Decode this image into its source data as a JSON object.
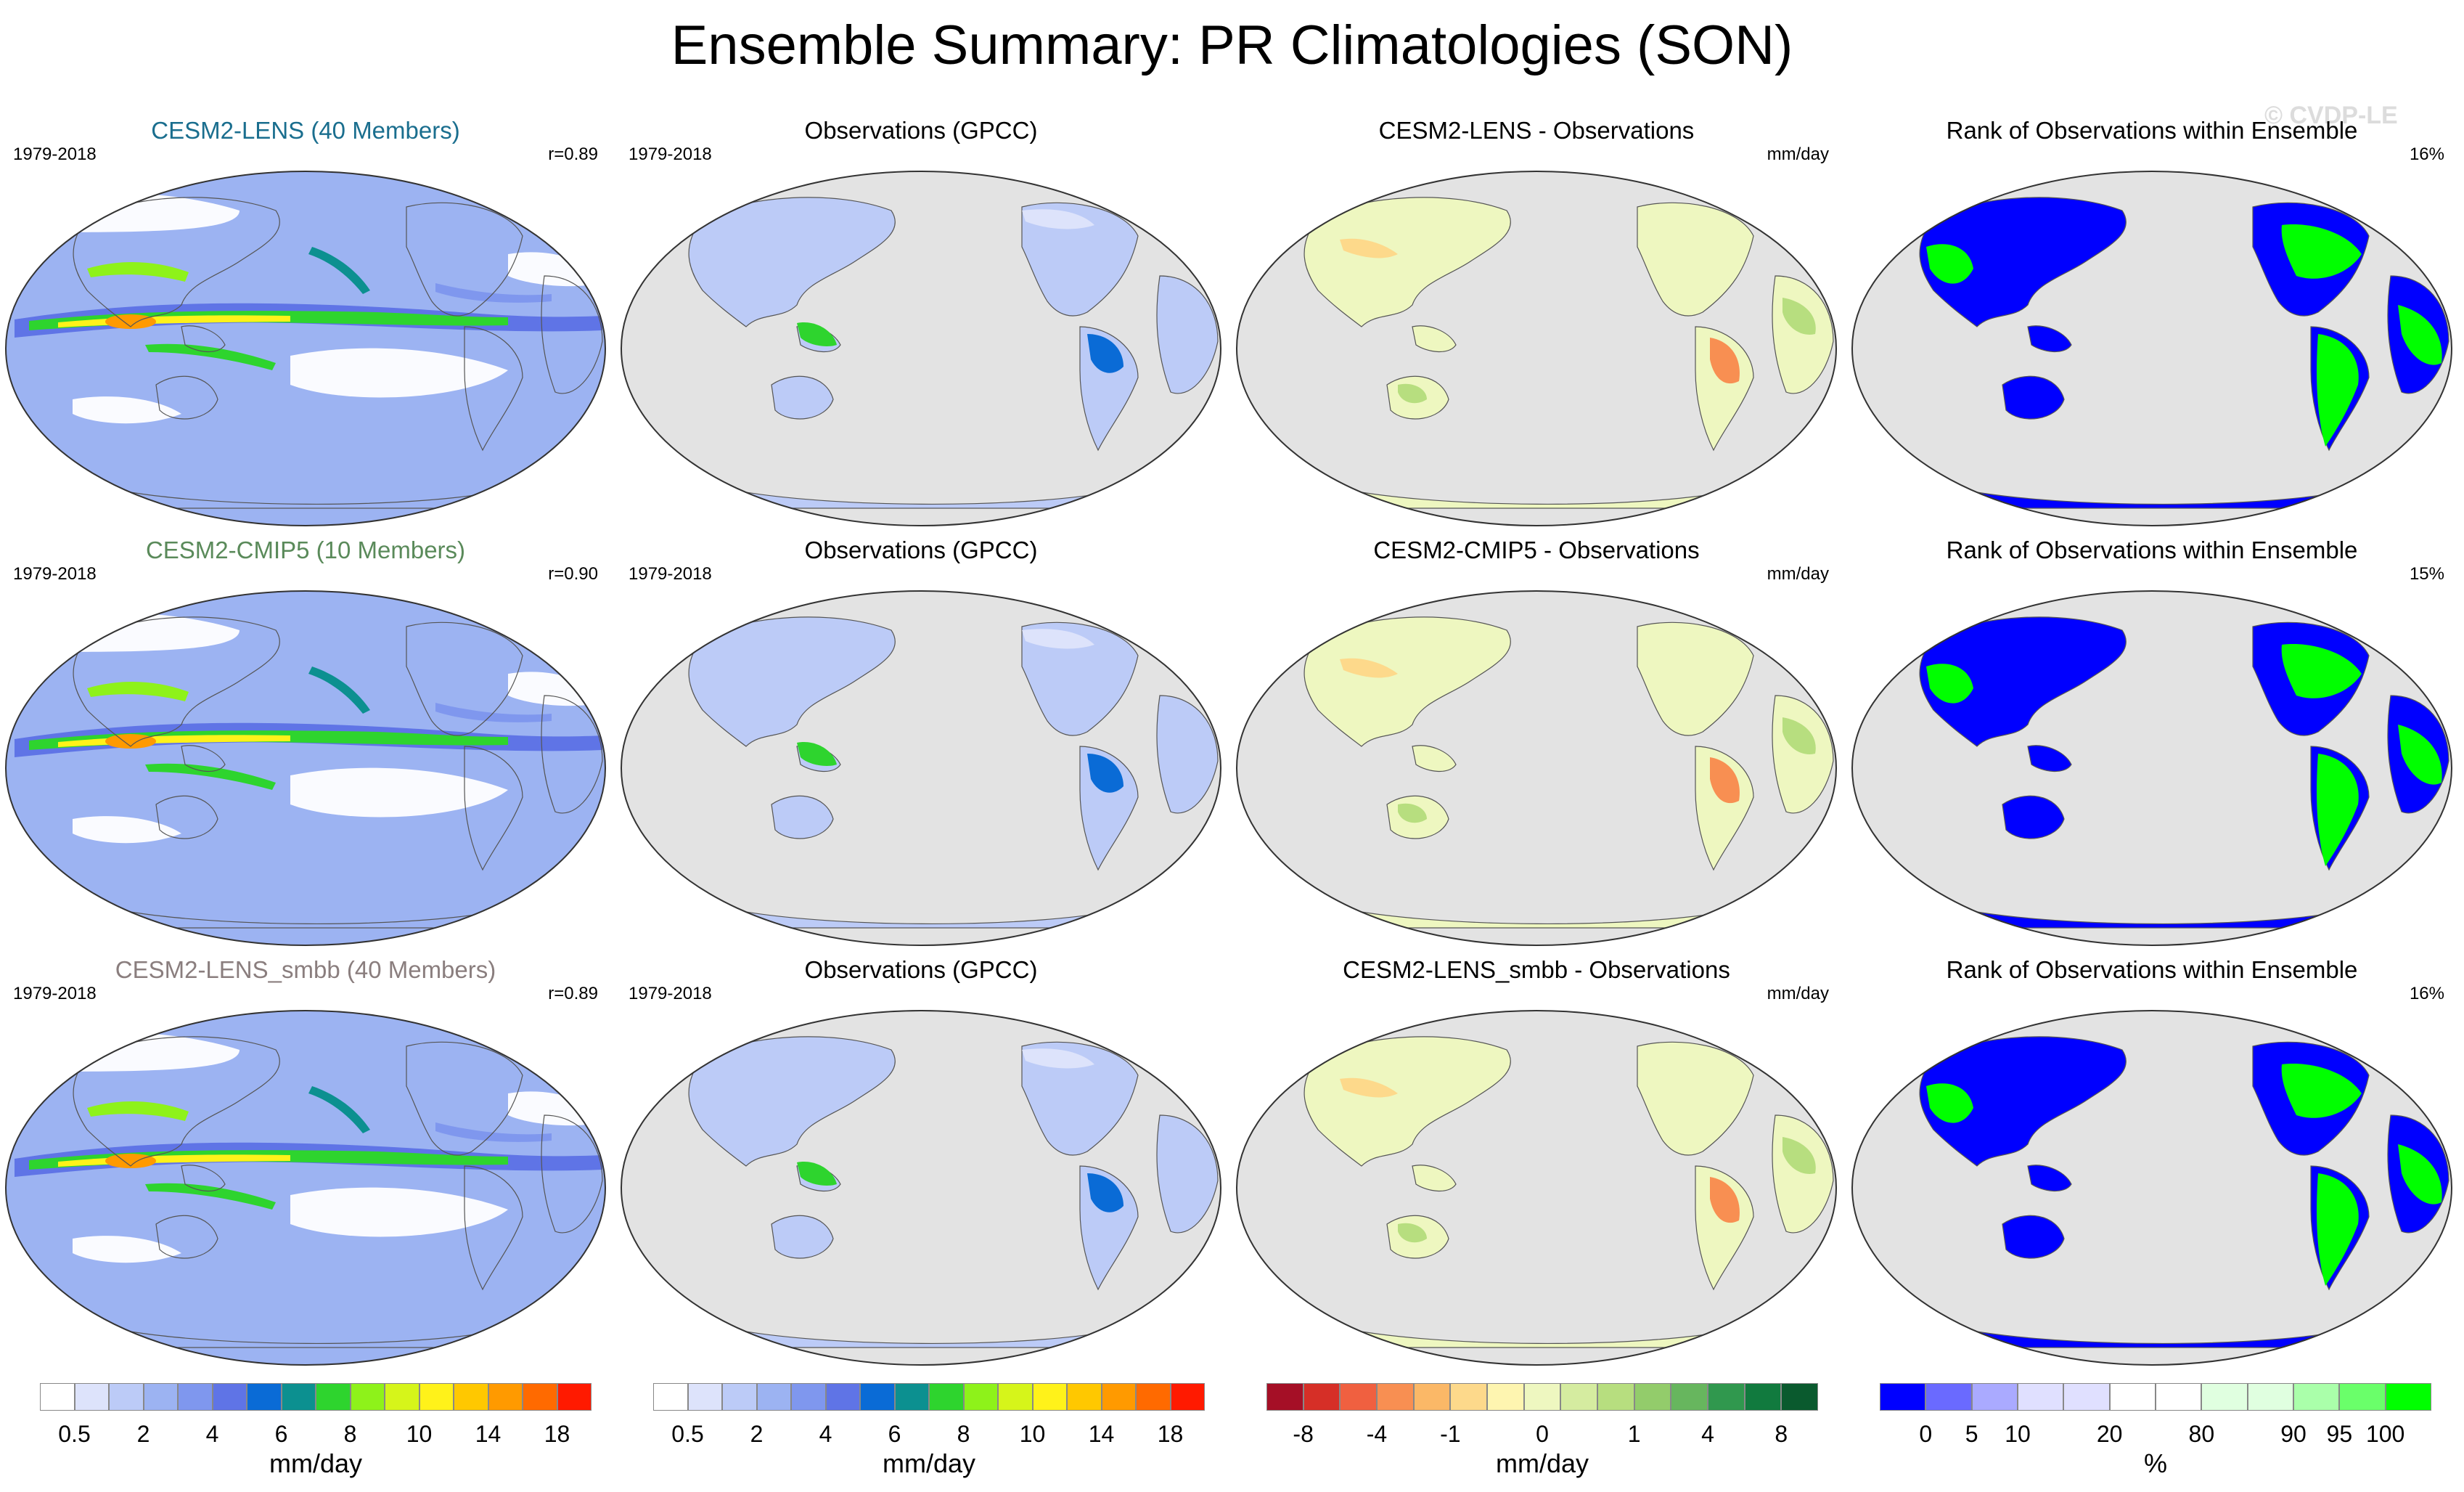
{
  "figure": {
    "title": "Ensemble Summary: PR Climatologies (SON)",
    "watermark": "© CVDP-LE"
  },
  "rows": [
    {
      "panels": [
        {
          "title": "CESM2-LENS (40 Members)",
          "title_color": "#1a6e8e",
          "left": "1979-2018",
          "right": "r=0.89",
          "map_type": "model"
        },
        {
          "title": "Observations (GPCC)",
          "title_color": "#000000",
          "left": "1979-2018",
          "right": "",
          "map_type": "obs"
        },
        {
          "title": "CESM2-LENS - Observations",
          "title_color": "#000000",
          "left": "",
          "right": "mm/day",
          "map_type": "diff"
        },
        {
          "title": "Rank of Observations within Ensemble",
          "title_color": "#000000",
          "left": "",
          "right": "16%",
          "map_type": "rank"
        }
      ]
    },
    {
      "panels": [
        {
          "title": "CESM2-CMIP5 (10 Members)",
          "title_color": "#5a8a5a",
          "left": "1979-2018",
          "right": "r=0.90",
          "map_type": "model"
        },
        {
          "title": "Observations (GPCC)",
          "title_color": "#000000",
          "left": "1979-2018",
          "right": "",
          "map_type": "obs"
        },
        {
          "title": "CESM2-CMIP5 - Observations",
          "title_color": "#000000",
          "left": "",
          "right": "mm/day",
          "map_type": "diff"
        },
        {
          "title": "Rank of Observations within Ensemble",
          "title_color": "#000000",
          "left": "",
          "right": "15%",
          "map_type": "rank"
        }
      ]
    },
    {
      "panels": [
        {
          "title": "CESM2-LENS_smbb (40 Members)",
          "title_color": "#8a7e7e",
          "left": "1979-2018",
          "right": "r=0.89",
          "map_type": "model"
        },
        {
          "title": "Observations (GPCC)",
          "title_color": "#000000",
          "left": "1979-2018",
          "right": "",
          "map_type": "obs"
        },
        {
          "title": "CESM2-LENS_smbb - Observations",
          "title_color": "#000000",
          "left": "",
          "right": "mm/day",
          "map_type": "diff"
        },
        {
          "title": "Rank of Observations within Ensemble",
          "title_color": "#000000",
          "left": "",
          "right": "16%",
          "map_type": "rank"
        }
      ]
    }
  ],
  "colorbars": [
    {
      "name": "precip-model",
      "colors": [
        "#ffffff",
        "#dde3fb",
        "#bccbf7",
        "#9cb3f2",
        "#7f97ee",
        "#5f74e6",
        "#0a6bd6",
        "#0c9090",
        "#2ed42e",
        "#8ef21a",
        "#d6f51a",
        "#fff21a",
        "#ffc800",
        "#ff9a00",
        "#ff6a00",
        "#ff1a00"
      ],
      "ticks": [
        "0.5",
        "2",
        "4",
        "6",
        "8",
        "10",
        "14",
        "18"
      ],
      "tick_boundaries": [
        1,
        3,
        5,
        7,
        9,
        11,
        13,
        15
      ],
      "units": "mm/day"
    },
    {
      "name": "precip-obs",
      "colors": [
        "#ffffff",
        "#dde3fb",
        "#bccbf7",
        "#9cb3f2",
        "#7f97ee",
        "#5f74e6",
        "#0a6bd6",
        "#0c9090",
        "#2ed42e",
        "#8ef21a",
        "#d6f51a",
        "#fff21a",
        "#ffc800",
        "#ff9a00",
        "#ff6a00",
        "#ff1a00"
      ],
      "ticks": [
        "0.5",
        "2",
        "4",
        "6",
        "8",
        "10",
        "14",
        "18"
      ],
      "tick_boundaries": [
        1,
        3,
        5,
        7,
        9,
        11,
        13,
        15
      ],
      "units": "mm/day"
    },
    {
      "name": "diff",
      "colors": [
        "#a50f26",
        "#d62f27",
        "#f06040",
        "#f88f52",
        "#fbb867",
        "#fdd98b",
        "#fef5b0",
        "#eef7c0",
        "#d5eca0",
        "#b7de7f",
        "#93cc6b",
        "#67b65e",
        "#30984e",
        "#117a3e",
        "#0a5a2e"
      ],
      "ticks": [
        "-8",
        "-4",
        "-1",
        "0",
        "1",
        "4",
        "8"
      ],
      "tick_boundaries": [
        1,
        3,
        5,
        7.5,
        10,
        12,
        14
      ],
      "units": "mm/day"
    },
    {
      "name": "rank",
      "colors": [
        "#0000ff",
        "#6a6aff",
        "#aaaaff",
        "#e0e0ff",
        "#e0e0ff",
        "#ffffff",
        "#ffffff",
        "#e0ffe0",
        "#e0ffe0",
        "#aaffaa",
        "#6aff6a",
        "#00ff00"
      ],
      "ticks": [
        "0",
        "5",
        "10",
        "20",
        "80",
        "90",
        "95",
        "100"
      ],
      "tick_boundaries": [
        1,
        2,
        3,
        5,
        7,
        9,
        10,
        11
      ],
      "units": "%"
    }
  ]
}
